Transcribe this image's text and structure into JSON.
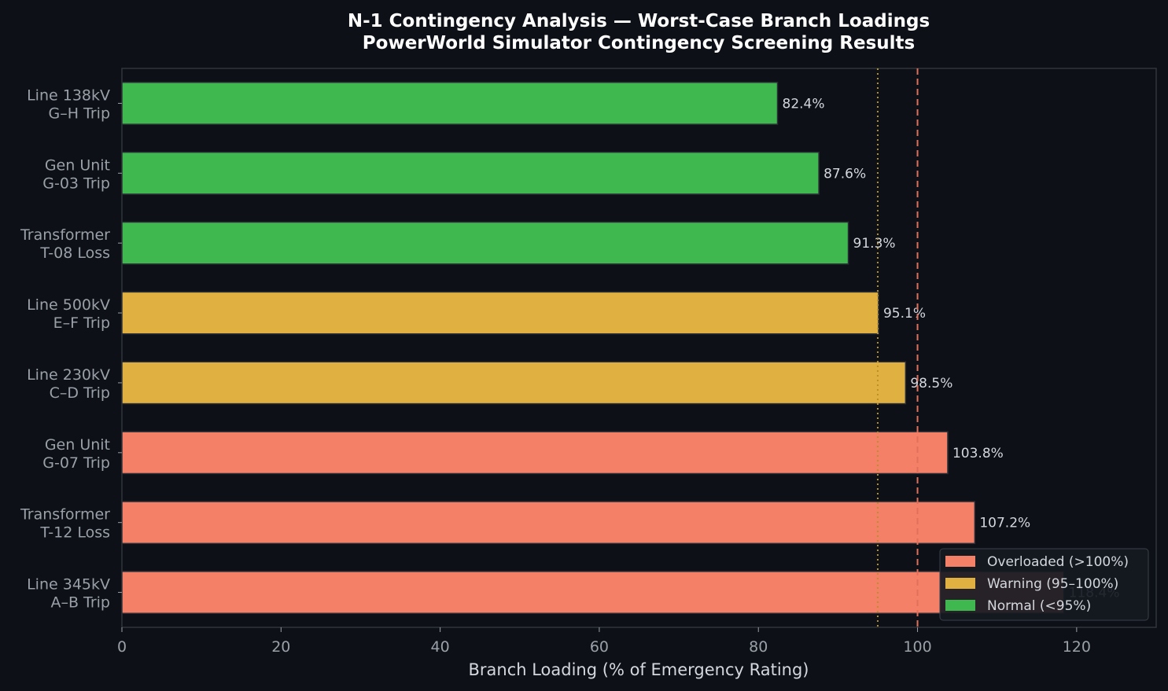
{
  "chart_data": {
    "type": "bar",
    "orientation": "horizontal",
    "title": "N-1 Contingency Analysis — Worst-Case Branch Loadings",
    "subtitle": "PowerWorld Simulator Contingency Screening Results",
    "xlabel": "Branch Loading (% of Emergency Rating)",
    "ylabel": "",
    "xlim": [
      0,
      130
    ],
    "xticks": [
      0,
      20,
      40,
      60,
      80,
      100,
      120
    ],
    "grid": false,
    "legend_position": "bottom-right",
    "reference_lines": [
      {
        "value": 95,
        "style": "dotted",
        "color": "#b8902a"
      },
      {
        "value": 100,
        "style": "dashed",
        "color": "#e0705a"
      }
    ],
    "categories": [
      {
        "line1": "Line 138kV",
        "line2": "G–H Trip"
      },
      {
        "line1": "Gen Unit",
        "line2": "G-03 Trip"
      },
      {
        "line1": "Transformer",
        "line2": "T-08 Loss"
      },
      {
        "line1": "Line 500kV",
        "line2": "E–F Trip"
      },
      {
        "line1": "Line 230kV",
        "line2": "C–D Trip"
      },
      {
        "line1": "Gen Unit",
        "line2": "G-07 Trip"
      },
      {
        "line1": "Transformer",
        "line2": "T-12 Loss"
      },
      {
        "line1": "Line 345kV",
        "line2": "A–B Trip"
      }
    ],
    "values": [
      82.4,
      87.6,
      91.3,
      95.1,
      98.5,
      103.8,
      107.2,
      118.4
    ],
    "value_labels": [
      "82.4%",
      "87.6%",
      "91.3%",
      "95.1%",
      "98.5%",
      "103.8%",
      "107.2%",
      "118.4%"
    ],
    "status": [
      "normal",
      "normal",
      "normal",
      "warning",
      "warning",
      "overloaded",
      "overloaded",
      "overloaded"
    ],
    "colors": {
      "overloaded": "#f58068",
      "warning": "#e0b040",
      "normal": "#40b850",
      "background": "#0d1017",
      "axes_edge": "#30343c"
    },
    "legend": [
      {
        "key": "overloaded",
        "label": "Overloaded (>100%)"
      },
      {
        "key": "warning",
        "label": "Warning (95–100%)"
      },
      {
        "key": "normal",
        "label": "Normal (<95%)"
      }
    ]
  }
}
